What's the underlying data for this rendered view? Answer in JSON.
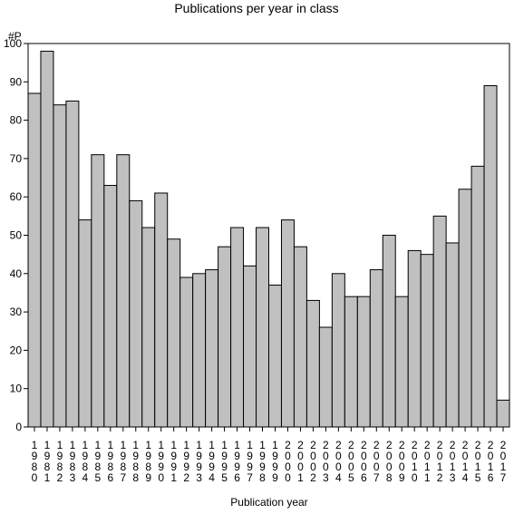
{
  "chart_data": {
    "type": "bar",
    "title": "Publications per year in class",
    "ylabel": "#P",
    "xlabel": "Publication year",
    "ylim": [
      0,
      100
    ],
    "yticks": [
      0,
      10,
      20,
      30,
      40,
      50,
      60,
      70,
      80,
      90,
      100
    ],
    "grid": false,
    "legend": "none",
    "colors": {
      "bar_fill": "#c0c0c0",
      "bar_stroke": "#000000",
      "axis": "#000000",
      "background": "#ffffff"
    },
    "categories": [
      "1980",
      "1981",
      "1982",
      "1983",
      "1984",
      "1985",
      "1986",
      "1987",
      "1988",
      "1989",
      "1990",
      "1991",
      "1992",
      "1993",
      "1994",
      "1995",
      "1996",
      "1997",
      "1998",
      "1999",
      "2000",
      "2001",
      "2002",
      "2003",
      "2004",
      "2005",
      "2006",
      "2007",
      "2008",
      "2009",
      "2010",
      "2011",
      "2012",
      "2013",
      "2014",
      "2015",
      "2016",
      "2017"
    ],
    "values": [
      87,
      98,
      84,
      85,
      54,
      71,
      63,
      71,
      59,
      52,
      61,
      49,
      39,
      40,
      41,
      47,
      52,
      42,
      52,
      37,
      54,
      47,
      33,
      26,
      40,
      34,
      34,
      41,
      50,
      34,
      46,
      45,
      55,
      48,
      62,
      68,
      89,
      7
    ]
  }
}
